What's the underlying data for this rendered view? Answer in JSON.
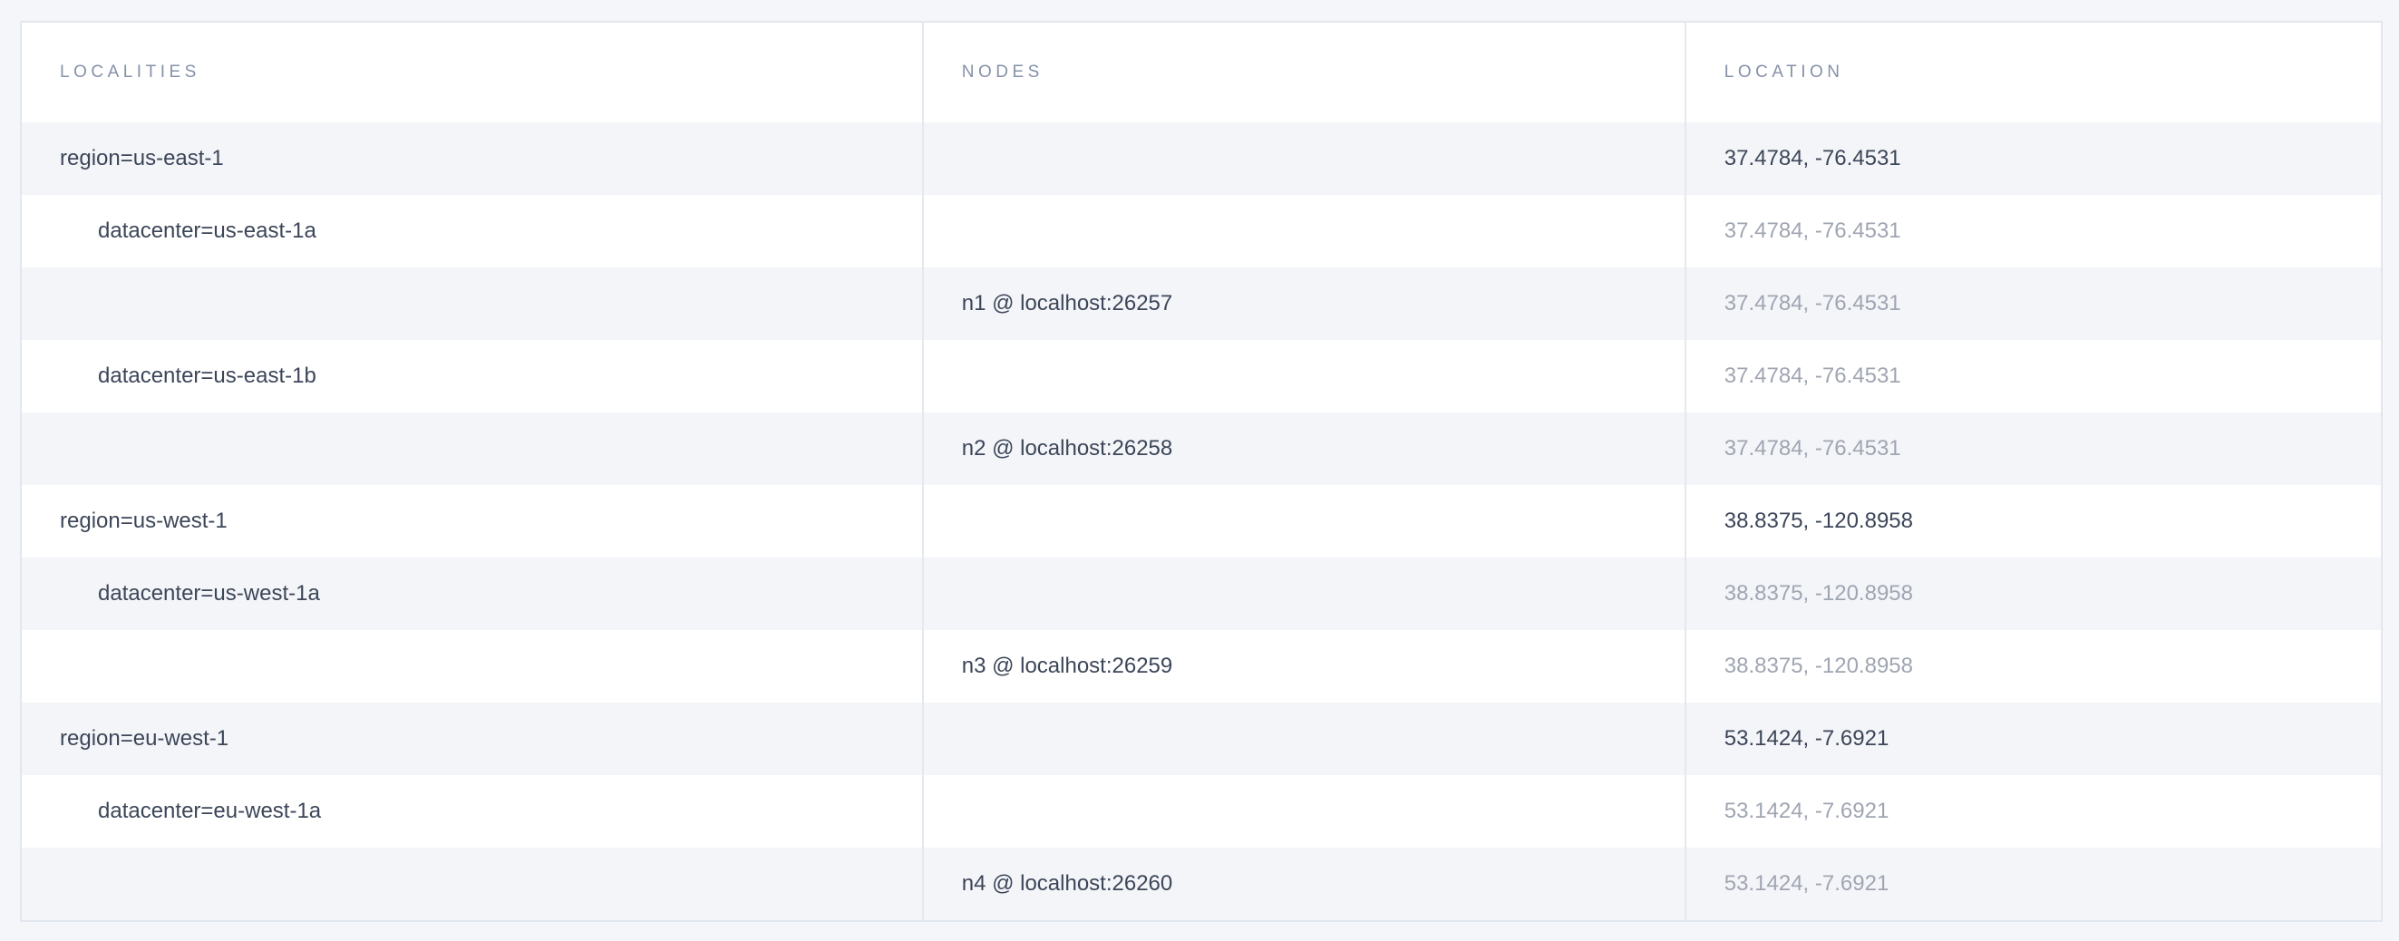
{
  "table": {
    "columns": [
      {
        "label": "LOCALITIES"
      },
      {
        "label": "NODES"
      },
      {
        "label": "LOCATION"
      }
    ],
    "rows": [
      {
        "type": "region",
        "locality": "region=us-east-1",
        "node": "",
        "location": "37.4784, -76.4531"
      },
      {
        "type": "datacenter",
        "locality": "datacenter=us-east-1a",
        "node": "",
        "location": "37.4784, -76.4531"
      },
      {
        "type": "node",
        "locality": "",
        "node": "n1 @ localhost:26257",
        "location": "37.4784, -76.4531"
      },
      {
        "type": "datacenter",
        "locality": "datacenter=us-east-1b",
        "node": "",
        "location": "37.4784, -76.4531"
      },
      {
        "type": "node",
        "locality": "",
        "node": "n2 @ localhost:26258",
        "location": "37.4784, -76.4531"
      },
      {
        "type": "region",
        "locality": "region=us-west-1",
        "node": "",
        "location": "38.8375, -120.8958"
      },
      {
        "type": "datacenter",
        "locality": "datacenter=us-west-1a",
        "node": "",
        "location": "38.8375, -120.8958"
      },
      {
        "type": "node",
        "locality": "",
        "node": "n3 @ localhost:26259",
        "location": "38.8375, -120.8958"
      },
      {
        "type": "region",
        "locality": "region=eu-west-1",
        "node": "",
        "location": "53.1424, -7.6921"
      },
      {
        "type": "datacenter",
        "locality": "datacenter=eu-west-1a",
        "node": "",
        "location": "53.1424, -7.6921"
      },
      {
        "type": "node",
        "locality": "",
        "node": "n4 @ localhost:26260",
        "location": "53.1424, -7.6921"
      }
    ],
    "colors": {
      "page_background": "#f4f6f9",
      "row_stripe": "#f4f5f9",
      "table_border": "#e2e6ee",
      "column_divider": "#e4e8ef",
      "header_text": "#8691a8",
      "primary_text": "#3c4658",
      "muted_text": "#9fa5b1"
    }
  }
}
